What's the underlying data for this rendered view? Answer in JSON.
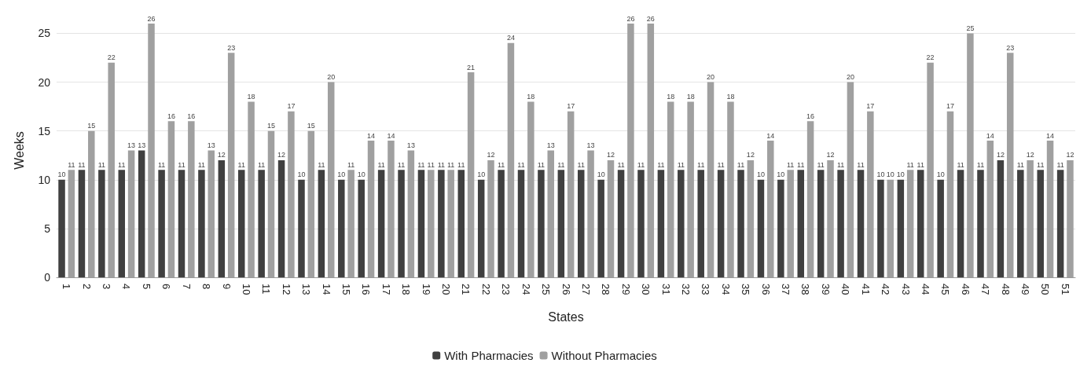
{
  "chart_data": {
    "type": "bar",
    "xlabel": "States",
    "ylabel": "Weeks",
    "categories": [
      "1",
      "2",
      "3",
      "4",
      "5",
      "6",
      "7",
      "8",
      "9",
      "10",
      "11",
      "12",
      "13",
      "14",
      "15",
      "16",
      "17",
      "18",
      "19",
      "20",
      "21",
      "22",
      "23",
      "24",
      "25",
      "26",
      "27",
      "28",
      "29",
      "30",
      "31",
      "32",
      "33",
      "34",
      "35",
      "36",
      "37",
      "38",
      "39",
      "40",
      "41",
      "42",
      "43",
      "44",
      "45",
      "46",
      "47",
      "48",
      "49",
      "50",
      "51"
    ],
    "series": [
      {
        "name": "With Pharmacies",
        "color": "#404040",
        "values": [
          10,
          11,
          11,
          11,
          13,
          11,
          11,
          11,
          12,
          11,
          11,
          12,
          10,
          11,
          10,
          10,
          11,
          11,
          11,
          11,
          11,
          10,
          11,
          11,
          11,
          11,
          11,
          10,
          11,
          11,
          11,
          11,
          11,
          11,
          11,
          10,
          10,
          11,
          11,
          11,
          11,
          10,
          10,
          11,
          10,
          11,
          11,
          12,
          11,
          11,
          11
        ]
      },
      {
        "name": "Without Pharmacies",
        "color": "#a0a0a0",
        "values": [
          11,
          15,
          22,
          13,
          26,
          16,
          16,
          13,
          23,
          18,
          15,
          17,
          15,
          20,
          11,
          14,
          14,
          13,
          11,
          11,
          21,
          12,
          24,
          18,
          13,
          17,
          13,
          12,
          26,
          26,
          18,
          18,
          20,
          18,
          12,
          14,
          11,
          16,
          12,
          20,
          17,
          10,
          11,
          22,
          17,
          25,
          14,
          23,
          12,
          14,
          12
        ]
      }
    ],
    "ylim": [
      0,
      26
    ],
    "yticks": [
      0,
      5,
      10,
      15,
      20,
      25
    ],
    "grid": "y",
    "legend": "bottom",
    "data_labels": true
  }
}
